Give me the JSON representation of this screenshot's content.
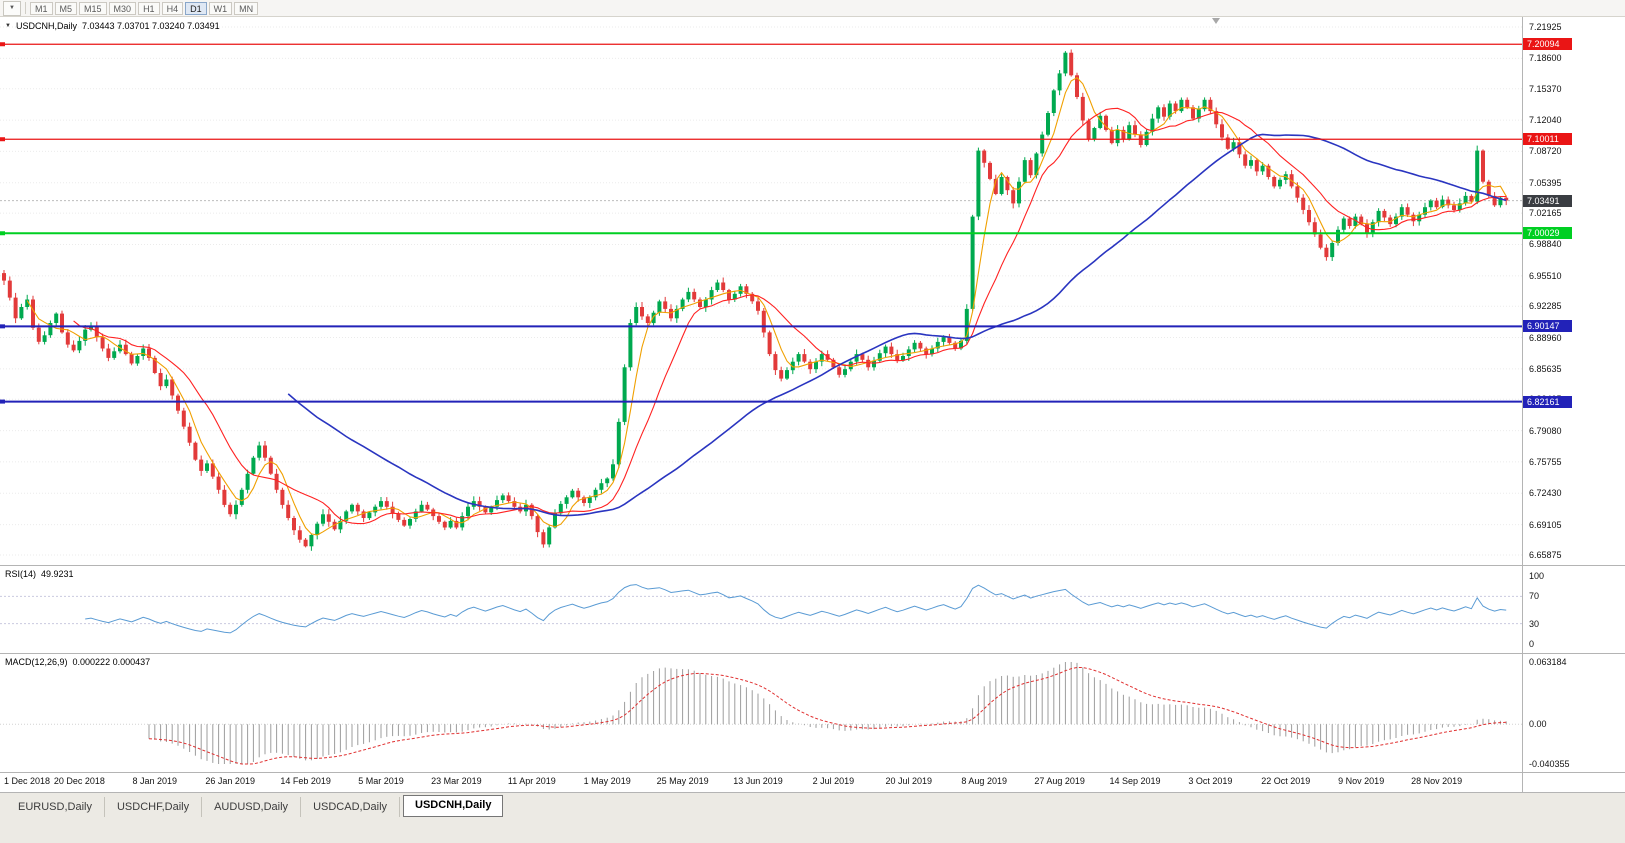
{
  "toolbar": {
    "dropdown_icon": "▼",
    "timeframes": [
      "M1",
      "M5",
      "M15",
      "M30",
      "H1",
      "H4",
      "D1",
      "W1",
      "MN"
    ],
    "active_timeframe": "D1"
  },
  "chart": {
    "dropdown_icon": "▼",
    "title": "USDCNH,Daily",
    "ohlc_text": "7.03443 7.03701 7.03240 7.03491"
  },
  "rsi": {
    "label": "RSI(14)",
    "value": "49.9231"
  },
  "macd": {
    "label": "MACD(12,26,9)",
    "values": "0.000222 0.000437"
  },
  "tabs": [
    "EURUSD,Daily",
    "USDCHF,Daily",
    "AUDUSD,Daily",
    "USDCAD,Daily",
    "USDCNH,Daily"
  ],
  "active_tab": "USDCNH,Daily",
  "chart_data": {
    "type": "candlestick",
    "symbol": "USDCNH",
    "timeframe": "Daily",
    "current_price": "7.03491",
    "current_price_value": 7.03491,
    "bull_color": "#00a94f",
    "bear_color": "#e23a3a",
    "price_axis_ticks": [
      "7.21925",
      "7.18600",
      "7.15370",
      "7.12040",
      "7.08720",
      "7.05395",
      "7.02165",
      "6.98840",
      "6.95510",
      "6.92285",
      "6.88960",
      "6.85635",
      "6.82405",
      "6.79080",
      "6.75755",
      "6.72430",
      "6.69105",
      "6.65875"
    ],
    "time_labels": [
      "1 Dec 2018",
      "20 Dec 2018",
      "8 Jan 2019",
      "26 Jan 2019",
      "14 Feb 2019",
      "5 Mar 2019",
      "23 Mar 2019",
      "11 Apr 2019",
      "1 May 2019",
      "25 May 2019",
      "13 Jun 2019",
      "2 Jul 2019",
      "20 Jul 2019",
      "8 Aug 2019",
      "27 Aug 2019",
      "14 Sep 2019",
      "3 Oct 2019",
      "22 Oct 2019",
      "9 Nov 2019",
      "28 Nov 2019"
    ],
    "bars_per_time_label": 13,
    "closes": [
      6.95,
      6.932,
      6.91,
      6.922,
      6.93,
      6.9,
      6.885,
      6.892,
      6.905,
      6.915,
      6.895,
      6.882,
      6.876,
      6.886,
      6.898,
      6.902,
      6.89,
      6.878,
      6.868,
      6.875,
      6.882,
      6.872,
      6.862,
      6.87,
      6.878,
      6.868,
      6.852,
      6.838,
      6.845,
      6.828,
      6.812,
      6.795,
      6.778,
      6.76,
      6.748,
      6.756,
      6.742,
      6.728,
      6.712,
      6.702,
      6.712,
      6.728,
      6.745,
      6.762,
      6.775,
      6.762,
      6.745,
      6.728,
      6.712,
      6.698,
      6.685,
      6.675,
      6.668,
      6.68,
      6.692,
      6.702,
      6.694,
      6.686,
      6.695,
      6.705,
      6.712,
      6.705,
      6.698,
      6.704,
      6.71,
      6.716,
      6.71,
      6.703,
      6.696,
      6.69,
      6.697,
      6.705,
      6.712,
      6.707,
      6.7,
      6.694,
      6.688,
      6.695,
      6.688,
      6.7,
      6.71,
      6.716,
      6.71,
      6.704,
      6.71,
      6.717,
      6.722,
      6.716,
      6.71,
      6.705,
      6.712,
      6.7,
      6.683,
      6.67,
      6.688,
      6.703,
      6.713,
      6.72,
      6.727,
      6.72,
      6.714,
      6.72,
      6.728,
      6.735,
      6.74,
      6.755,
      6.8,
      6.858,
      6.905,
      6.922,
      6.912,
      6.905,
      6.916,
      6.928,
      6.92,
      6.91,
      6.92,
      6.93,
      6.938,
      6.93,
      6.922,
      6.93,
      6.94,
      6.948,
      6.94,
      6.93,
      6.936,
      6.944,
      6.936,
      6.928,
      6.918,
      6.895,
      6.872,
      6.855,
      6.846,
      6.855,
      6.864,
      6.872,
      6.864,
      6.856,
      6.864,
      6.872,
      6.866,
      6.858,
      6.85,
      6.856,
      6.864,
      6.872,
      6.866,
      6.858,
      6.865,
      6.873,
      6.88,
      6.872,
      6.865,
      6.87,
      6.877,
      6.884,
      6.878,
      6.872,
      6.878,
      6.885,
      6.89,
      6.884,
      6.878,
      6.886,
      6.92,
      7.018,
      7.088,
      7.075,
      7.058,
      7.042,
      7.06,
      7.046,
      7.032,
      7.055,
      7.078,
      7.062,
      7.085,
      7.105,
      7.128,
      7.152,
      7.17,
      7.192,
      7.168,
      7.145,
      7.12,
      7.1,
      7.112,
      7.125,
      7.11,
      7.096,
      7.11,
      7.1,
      7.115,
      7.105,
      7.094,
      7.108,
      7.122,
      7.134,
      7.124,
      7.138,
      7.13,
      7.142,
      7.134,
      7.122,
      7.132,
      7.142,
      7.13,
      7.116,
      7.102,
      7.09,
      7.097,
      7.084,
      7.072,
      7.078,
      7.066,
      7.072,
      7.06,
      7.05,
      7.057,
      7.063,
      7.05,
      7.038,
      7.025,
      7.012,
      6.999,
      6.985,
      6.975,
      6.99,
      7.004,
      7.016,
      7.008,
      7.018,
      7.01,
      7.0,
      7.012,
      7.024,
      7.017,
      7.01,
      7.018,
      7.028,
      7.02,
      7.013,
      7.02,
      7.028,
      7.035,
      7.028,
      7.036,
      7.03,
      7.025,
      7.032,
      7.04,
      7.034,
      7.088,
      7.055,
      7.04,
      7.03,
      7.038,
      7.035
    ],
    "horizontal_levels": [
      {
        "label": "7.20094",
        "value": 7.20094,
        "color": "#ea1515",
        "width": 1.2
      },
      {
        "label": "7.10011",
        "value": 7.10011,
        "color": "#ea1515",
        "width": 1.2
      },
      {
        "label": "7.00029",
        "value": 7.00029,
        "color": "#00cf22",
        "width": 2
      },
      {
        "label": "6.90147",
        "value": 6.90147,
        "color": "#2222b8",
        "width": 2
      },
      {
        "label": "6.82161",
        "value": 6.82161,
        "color": "#2222b8",
        "width": 2
      }
    ],
    "moving_averages": [
      {
        "name": "fast-ma",
        "window": 5,
        "color": "#f0a000"
      },
      {
        "name": "medium-ma",
        "window": 13,
        "color": "#ff2222"
      },
      {
        "name": "slow-ma",
        "window": 50,
        "color": "#2a35c0"
      }
    ],
    "rsi": {
      "period": 14,
      "range": [
        0,
        100
      ],
      "ticks": [
        "100",
        "70",
        "30",
        "0"
      ],
      "level_lines": [
        70,
        30
      ],
      "color": "#5a9bd4",
      "current": 49.9231
    },
    "macd": {
      "fast": 12,
      "slow": 26,
      "signal": 9,
      "current_main": 0.000222,
      "current_signal": 0.000437,
      "ticks": [
        "0.063184",
        "0.00",
        "-0.040355"
      ],
      "axis_max": 0.063184,
      "axis_min": -0.040355,
      "histogram_color": "#9c9c9c",
      "signal_color": "#e03030"
    }
  }
}
